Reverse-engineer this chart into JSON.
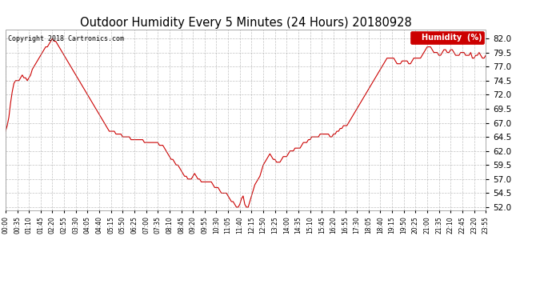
{
  "title": "Outdoor Humidity Every 5 Minutes (24 Hours) 20180928",
  "copyright": "Copyright 2018 Cartronics.com",
  "legend_label": "Humidity  (%)",
  "line_color": "#cc0000",
  "background_color": "#ffffff",
  "grid_color": "#999999",
  "ylim": [
    51.5,
    83.5
  ],
  "yticks": [
    52.0,
    54.5,
    57.0,
    59.5,
    62.0,
    64.5,
    67.0,
    69.5,
    72.0,
    74.5,
    77.0,
    79.5,
    82.0
  ],
  "xlabel_fontsize": 5.5,
  "ylabel_fontsize": 7.5,
  "title_fontsize": 10.5,
  "xtick_labels": [
    "00:00",
    "00:35",
    "01:10",
    "01:45",
    "02:20",
    "02:55",
    "03:30",
    "04:05",
    "04:40",
    "05:15",
    "05:50",
    "06:25",
    "07:00",
    "07:35",
    "08:10",
    "08:45",
    "09:20",
    "09:55",
    "10:30",
    "11:05",
    "11:40",
    "12:15",
    "12:50",
    "13:25",
    "14:00",
    "14:35",
    "15:10",
    "15:45",
    "16:20",
    "16:55",
    "17:30",
    "18:05",
    "18:40",
    "19:15",
    "19:50",
    "20:25",
    "21:00",
    "21:35",
    "22:10",
    "22:45",
    "23:20",
    "23:55"
  ],
  "humidity_values": [
    65.5,
    66.5,
    68.0,
    70.5,
    72.5,
    74.0,
    74.5,
    74.5,
    74.5,
    75.0,
    75.5,
    75.0,
    75.0,
    74.5,
    75.0,
    75.5,
    76.5,
    77.0,
    77.5,
    78.0,
    78.5,
    79.0,
    79.5,
    80.0,
    80.5,
    80.5,
    81.0,
    81.5,
    82.0,
    81.5,
    81.5,
    81.0,
    80.5,
    80.0,
    79.5,
    79.0,
    78.5,
    78.0,
    77.5,
    77.0,
    76.5,
    76.0,
    75.5,
    75.0,
    74.5,
    74.0,
    73.5,
    73.0,
    72.5,
    72.0,
    71.5,
    71.0,
    70.5,
    70.0,
    69.5,
    69.0,
    68.5,
    68.0,
    67.5,
    67.0,
    66.5,
    66.0,
    65.5,
    65.5,
    65.5,
    65.5,
    65.0,
    65.0,
    65.0,
    65.0,
    64.5,
    64.5,
    64.5,
    64.5,
    64.5,
    64.0,
    64.0,
    64.0,
    64.0,
    64.0,
    64.0,
    64.0,
    64.0,
    63.5,
    63.5,
    63.5,
    63.5,
    63.5,
    63.5,
    63.5,
    63.5,
    63.5,
    63.0,
    63.0,
    63.0,
    62.5,
    62.0,
    61.5,
    61.0,
    60.5,
    60.5,
    60.0,
    59.5,
    59.5,
    59.0,
    58.5,
    58.0,
    57.5,
    57.5,
    57.0,
    57.0,
    57.0,
    57.5,
    58.0,
    57.5,
    57.0,
    57.0,
    56.5,
    56.5,
    56.5,
    56.5,
    56.5,
    56.5,
    56.5,
    56.0,
    55.5,
    55.5,
    55.5,
    55.0,
    54.5,
    54.5,
    54.5,
    54.5,
    54.0,
    53.5,
    53.0,
    53.0,
    52.5,
    52.0,
    52.0,
    52.5,
    53.5,
    54.0,
    52.5,
    52.0,
    52.0,
    53.0,
    54.0,
    55.0,
    56.0,
    56.5,
    57.0,
    57.5,
    58.5,
    59.5,
    60.0,
    60.5,
    61.0,
    61.5,
    61.0,
    60.5,
    60.5,
    60.0,
    60.0,
    60.0,
    60.5,
    61.0,
    61.0,
    61.0,
    61.5,
    62.0,
    62.0,
    62.0,
    62.5,
    62.5,
    62.5,
    62.5,
    63.0,
    63.5,
    63.5,
    63.5,
    64.0,
    64.0,
    64.5,
    64.5,
    64.5,
    64.5,
    64.5,
    65.0,
    65.0,
    65.0,
    65.0,
    65.0,
    65.0,
    64.5,
    64.5,
    65.0,
    65.0,
    65.5,
    65.5,
    66.0,
    66.0,
    66.5,
    66.5,
    66.5,
    67.0,
    67.5,
    68.0,
    68.5,
    69.0,
    69.5,
    70.0,
    70.5,
    71.0,
    71.5,
    72.0,
    72.5,
    73.0,
    73.5,
    74.0,
    74.5,
    75.0,
    75.5,
    76.0,
    76.5,
    77.0,
    77.5,
    78.0,
    78.5,
    78.5,
    78.5,
    78.5,
    78.5,
    78.0,
    77.5,
    77.5,
    77.5,
    78.0,
    78.0,
    78.0,
    78.0,
    77.5,
    77.5,
    78.0,
    78.5,
    78.5,
    78.5,
    78.5,
    78.5,
    79.0,
    79.5,
    80.0,
    80.5,
    80.5,
    80.5,
    80.0,
    79.5,
    79.5,
    79.5,
    79.0,
    79.0,
    79.5,
    80.0,
    80.0,
    79.5,
    79.5,
    80.0,
    80.0,
    79.5,
    79.0,
    79.0,
    79.0,
    79.5,
    79.5,
    79.5,
    79.0,
    79.0,
    79.0,
    79.5,
    78.5,
    78.5,
    79.0,
    79.0,
    79.5,
    79.0,
    78.5,
    78.5,
    79.0
  ]
}
